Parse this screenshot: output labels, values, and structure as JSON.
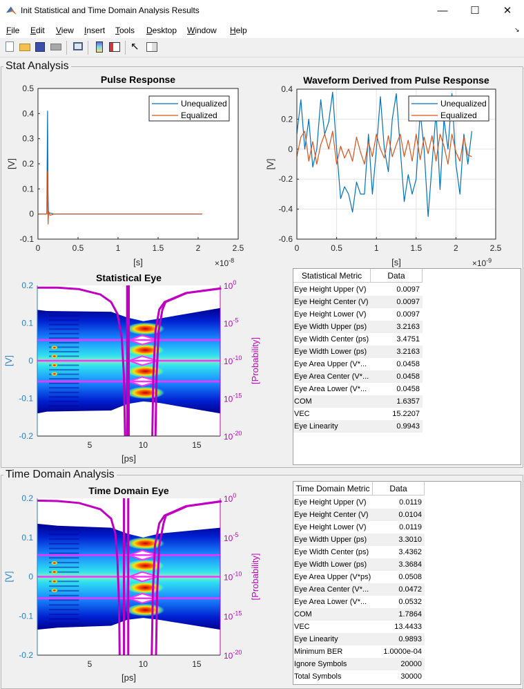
{
  "window": {
    "title": "Init Statistical and Time Domain Analysis Results",
    "controls": [
      "minimize",
      "maximize",
      "close"
    ]
  },
  "menu": [
    {
      "u": "F",
      "rest": "ile"
    },
    {
      "u": "E",
      "rest": "dit"
    },
    {
      "u": "V",
      "rest": "iew"
    },
    {
      "u": "I",
      "rest": "nsert"
    },
    {
      "u": "T",
      "rest": "ools"
    },
    {
      "u": "D",
      "rest": "esktop"
    },
    {
      "u": "W",
      "rest": "indow"
    },
    {
      "u": "H",
      "rest": "elp"
    }
  ],
  "toolbar": [
    "new-figure-icon",
    "open-file-icon",
    "save-icon",
    "print-icon",
    "link-figure-icon",
    "colorbar-icon",
    "legend-icon",
    "pointer-icon",
    "property-inspector-icon"
  ],
  "panels": {
    "stat": "Stat Analysis",
    "time": "Time Domain Analysis"
  },
  "stat_table": {
    "headers": [
      "Statistical Metric",
      "Data"
    ],
    "rows": [
      [
        "Eye Height Upper (V)",
        "0.0097"
      ],
      [
        "Eye Height Center (V)",
        "0.0097"
      ],
      [
        "Eye Height Lower (V)",
        "0.0097"
      ],
      [
        "Eye Width Upper (ps)",
        "3.2163"
      ],
      [
        "Eye Width Center (ps)",
        "3.4751"
      ],
      [
        "Eye Width Lower (ps)",
        "3.2163"
      ],
      [
        "Eye Area Upper (V*...",
        "0.0458"
      ],
      [
        "Eye Area Center (V*...",
        "0.0458"
      ],
      [
        "Eye Area Lower (V*...",
        "0.0458"
      ],
      [
        "COM",
        "1.6357"
      ],
      [
        "VEC",
        "15.2207"
      ],
      [
        "Eye Linearity",
        "0.9943"
      ]
    ]
  },
  "time_table": {
    "headers": [
      "Time Domain Metric",
      "Data"
    ],
    "rows": [
      [
        "Eye Height Upper (V)",
        "0.0119"
      ],
      [
        "Eye Height Center (V)",
        "0.0104"
      ],
      [
        "Eye Height Lower (V)",
        "0.0119"
      ],
      [
        "Eye Width Upper (ps)",
        "3.3010"
      ],
      [
        "Eye Width Center (ps)",
        "3.4362"
      ],
      [
        "Eye Width Lower (ps)",
        "3.3684"
      ],
      [
        "Eye Area Upper (V*ps)",
        "0.0508"
      ],
      [
        "Eye Area Center (V*...",
        "0.0472"
      ],
      [
        "Eye Area Lower (V*...",
        "0.0532"
      ],
      [
        "COM",
        "1.7864"
      ],
      [
        "VEC",
        "13.4433"
      ],
      [
        "Eye Linearity",
        "0.9893"
      ],
      [
        "Minimum BER",
        "1.0000e-04"
      ],
      [
        "Ignore Symbols",
        "20000"
      ],
      [
        "Total Symbols",
        "30000"
      ]
    ]
  },
  "chart_data": [
    {
      "id": "pulse",
      "type": "line",
      "title": "Pulse Response",
      "xlabel": "[s]",
      "ylabel": "[V]",
      "x_exponent": "-8",
      "xlim": [
        0,
        2.5
      ],
      "ylim": [
        -0.1,
        0.5
      ],
      "grid": false,
      "xticks": [
        0,
        0.5,
        1,
        1.5,
        2,
        2.5
      ],
      "xticklabels": [
        "0",
        "0.5",
        "1",
        "1.5",
        "2",
        "2.5"
      ],
      "yticks": [
        -0.1,
        0,
        0.1,
        0.2,
        0.3,
        0.4,
        0.5
      ],
      "yticklabels": [
        "-0.1",
        "0",
        "0.1",
        "0.2",
        "0.3",
        "0.4",
        "0.5"
      ],
      "legend": "top-right",
      "series": [
        {
          "name": "Unequalized",
          "color": "#0072BD",
          "x": [
            0,
            0.11,
            0.115,
            0.12,
            0.125,
            0.13,
            0.14,
            0.2,
            2.05
          ],
          "y": [
            0,
            0,
            0.2,
            0.41,
            0.1,
            0.0,
            0.005,
            0,
            0
          ]
        },
        {
          "name": "Equalized",
          "color": "#D95319",
          "x": [
            0,
            0.112,
            0.118,
            0.122,
            0.127,
            0.133,
            0.15,
            0.2,
            2.05
          ],
          "y": [
            0,
            0,
            0.17,
            0.05,
            -0.04,
            0.01,
            -0.005,
            0,
            0
          ]
        }
      ]
    },
    {
      "id": "wave",
      "type": "line",
      "title": "Waveform Derived from Pulse Response",
      "xlabel": "[s]",
      "ylabel": "[V]",
      "x_exponent": "-9",
      "xlim": [
        0,
        2.5
      ],
      "ylim": [
        -0.6,
        0.4
      ],
      "grid": true,
      "xticks": [
        0,
        0.5,
        1,
        1.5,
        2,
        2.5
      ],
      "xticklabels": [
        "0",
        "0.5",
        "1",
        "1.5",
        "2",
        "2.5"
      ],
      "yticks": [
        -0.6,
        -0.4,
        -0.2,
        0,
        0.2,
        0.4
      ],
      "yticklabels": [
        "-0.6",
        "-0.4",
        "-0.2",
        "0",
        "0.2",
        "0.4"
      ],
      "legend": "top-right",
      "x": [
        0,
        0.05,
        0.1,
        0.15,
        0.2,
        0.25,
        0.3,
        0.35,
        0.4,
        0.45,
        0.5,
        0.55,
        0.6,
        0.65,
        0.7,
        0.75,
        0.8,
        0.85,
        0.9,
        0.95,
        1.0,
        1.05,
        1.1,
        1.15,
        1.2,
        1.25,
        1.3,
        1.35,
        1.4,
        1.45,
        1.5,
        1.55,
        1.6,
        1.65,
        1.7,
        1.75,
        1.8,
        1.85,
        1.9,
        1.95,
        2.0,
        2.05,
        2.1,
        2.15,
        2.2
      ],
      "series": [
        {
          "name": "Unequalized",
          "color": "#0072BD",
          "y": [
            0.1,
            0.33,
            0.0,
            0.2,
            -0.12,
            0.0,
            0.33,
            0.1,
            0.18,
            0.38,
            0.0,
            -0.33,
            -0.25,
            -0.3,
            -0.42,
            -0.22,
            -0.3,
            -0.3,
            0.1,
            -0.3,
            0.0,
            0.35,
            0.0,
            -0.15,
            0.2,
            0.37,
            0.0,
            -0.35,
            -0.17,
            -0.3,
            -0.2,
            0.25,
            0.0,
            -0.45,
            -0.1,
            0.25,
            -0.27,
            0.2,
            0.0,
            0.37,
            -0.1,
            -0.3,
            0.1,
            -0.1,
            0.12
          ]
        },
        {
          "name": "Equalized",
          "color": "#D95319",
          "y": [
            -0.05,
            0.08,
            0.12,
            -0.08,
            0.05,
            -0.1,
            0.03,
            0.1,
            0.0,
            0.12,
            -0.1,
            0.02,
            -0.06,
            0.0,
            -0.08,
            0.08,
            -0.02,
            -0.1,
            0.05,
            -0.05,
            0.1,
            0.0,
            -0.06,
            0.09,
            -0.05,
            0.03,
            0.1,
            -0.05,
            0.06,
            -0.08,
            0.1,
            -0.07,
            0.08,
            -0.03,
            0.09,
            -0.08,
            0.1,
            0.02,
            -0.1,
            0.1,
            -0.02,
            -0.08,
            0.08,
            -0.04,
            -0.05
          ]
        }
      ]
    },
    {
      "id": "stateye",
      "type": "heatmap",
      "title": "Statistical Eye",
      "xlabel": "[ps]",
      "ylabel": "[V]",
      "y2label": "[Probability]",
      "xlim": [
        0.1,
        17.2
      ],
      "ylim": [
        -0.2,
        0.2
      ],
      "y2exp_lim": [
        -20,
        0
      ],
      "xticks": [
        5,
        10,
        15
      ],
      "xticklabels": [
        "5",
        "10",
        "15"
      ],
      "yticks": [
        -0.2,
        -0.1,
        0,
        0.1,
        0.2
      ],
      "yticklabels": [
        "-0.2",
        "-0.1",
        "0",
        "0.1",
        "0.2"
      ],
      "y2ticks": [
        0,
        -5,
        -10,
        -15,
        -20
      ],
      "y2base": "10",
      "envelope_upper": [
        [
          0.1,
          0.135
        ],
        [
          1,
          0.132
        ],
        [
          7,
          0.13
        ],
        [
          8.5,
          0.115
        ],
        [
          10,
          0.105
        ],
        [
          11.5,
          0.112
        ],
        [
          17.2,
          0.14
        ]
      ],
      "envelope_lower": [
        [
          0.1,
          -0.14
        ],
        [
          1,
          -0.135
        ],
        [
          7,
          -0.132
        ],
        [
          8.5,
          -0.115
        ],
        [
          10,
          -0.108
        ],
        [
          11.5,
          -0.112
        ],
        [
          17.2,
          -0.14
        ]
      ],
      "hot_bands": [
        0.085,
        0.028,
        -0.028,
        -0.085
      ],
      "eye_centers": [
        0.055,
        0,
        -0.055
      ],
      "contour_levels": [
        0.055,
        0,
        -0.055
      ],
      "bathtub_left": [
        [
          0.1,
          -0.3
        ],
        [
          2,
          -0.3
        ],
        [
          4,
          -0.5
        ],
        [
          6,
          -1.2
        ],
        [
          7,
          -2.2
        ],
        [
          7.6,
          -3.8
        ],
        [
          8.0,
          -7
        ],
        [
          8.2,
          -12
        ],
        [
          8.3,
          -20
        ]
      ],
      "bathtub_verticals": [
        8.5,
        8.65
      ],
      "bathtub_right": [
        [
          10.85,
          -20
        ],
        [
          10.95,
          -12
        ],
        [
          11.15,
          -6
        ],
        [
          11.5,
          -3.2
        ],
        [
          12,
          -2.2
        ],
        [
          14,
          -1.0
        ],
        [
          17.2,
          -0.4
        ]
      ],
      "bathtub_right_offset": 0.3,
      "colors": {
        "axis": "#2a7fc0",
        "prob": "#c000c0",
        "contour": "#ff30ff"
      }
    },
    {
      "id": "timeeye",
      "type": "heatmap",
      "title": "Time Domain Eye",
      "xlabel": "[ps]",
      "ylabel": "[V]",
      "y2label": "[Probability]",
      "xlim": [
        0.1,
        17.2
      ],
      "ylim": [
        -0.2,
        0.2
      ],
      "y2exp_lim": [
        -20,
        0
      ],
      "xticks": [
        5,
        10,
        15
      ],
      "xticklabels": [
        "5",
        "10",
        "15"
      ],
      "yticks": [
        -0.2,
        -0.1,
        0,
        0.1,
        0.2
      ],
      "yticklabels": [
        "-0.2",
        "-0.1",
        "0",
        "0.1",
        "0.2"
      ],
      "y2ticks": [
        0,
        -5,
        -10,
        -15,
        -20
      ],
      "y2base": "10",
      "envelope_upper": [
        [
          0.1,
          0.135
        ],
        [
          2,
          0.13
        ],
        [
          7,
          0.125
        ],
        [
          8.5,
          0.11
        ],
        [
          10,
          0.1
        ],
        [
          11.5,
          0.11
        ],
        [
          17.2,
          0.125
        ]
      ],
      "envelope_lower": [
        [
          0.1,
          -0.135
        ],
        [
          2,
          -0.13
        ],
        [
          7,
          -0.125
        ],
        [
          8.5,
          -0.11
        ],
        [
          10,
          -0.105
        ],
        [
          11.5,
          -0.11
        ],
        [
          17.2,
          -0.135
        ]
      ],
      "hot_bands": [
        0.085,
        0.028,
        -0.028,
        -0.085
      ],
      "eye_centers": [
        0.055,
        0,
        -0.055
      ],
      "contour_levels": [
        0.055,
        0,
        -0.055
      ],
      "bathtub_left": [
        [
          0.1,
          -0.3
        ],
        [
          2,
          -0.35
        ],
        [
          4,
          -0.6
        ],
        [
          6,
          -1.4
        ],
        [
          7,
          -2.6
        ],
        [
          7.4,
          -4.5
        ],
        [
          7.6,
          -8
        ],
        [
          7.75,
          -14
        ],
        [
          7.8,
          -20
        ]
      ],
      "bathtub_verticals": [
        8.2,
        8.6
      ],
      "bathtub_right": [
        [
          10.8,
          -20
        ],
        [
          10.9,
          -12
        ],
        [
          11.1,
          -6
        ],
        [
          11.5,
          -3.2
        ],
        [
          12,
          -2.2
        ],
        [
          14,
          -1.0
        ],
        [
          17.2,
          -0.4
        ]
      ],
      "bathtub_right_offset": 0.4,
      "colors": {
        "axis": "#2a7fc0",
        "prob": "#c000c0",
        "contour": "#ff30ff"
      }
    }
  ]
}
